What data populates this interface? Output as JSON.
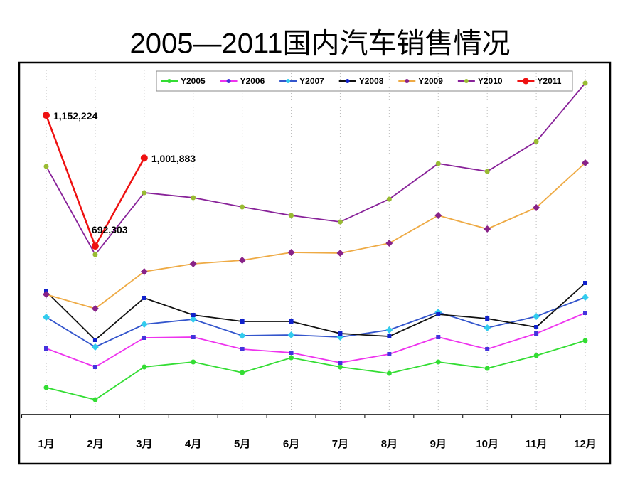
{
  "chart_data": {
    "type": "line",
    "title": "2005—2011国内汽车销售情况",
    "categories": [
      "1月",
      "2月",
      "3月",
      "4月",
      "5月",
      "6月",
      "7月",
      "8月",
      "9月",
      "10月",
      "11月",
      "12月"
    ],
    "ylim": [
      100000,
      1300000
    ],
    "legend": "top",
    "grid": true,
    "series": [
      {
        "name": "Y2005",
        "color": "#33dd33",
        "marker_color": "#33dd33",
        "values": [
          195000,
          152500,
          267500,
          285000,
          247500,
          300000,
          267500,
          245000,
          285000,
          262500,
          307500,
          360000
        ]
      },
      {
        "name": "Y2006",
        "color": "#ee33ee",
        "marker_color": "#4433dd",
        "values": [
          332500,
          267500,
          370000,
          372500,
          330000,
          317500,
          282500,
          312500,
          372500,
          330000,
          385000,
          457500
        ]
      },
      {
        "name": "Y2007",
        "color": "#3355cc",
        "marker_color": "#33ccee",
        "values": [
          442500,
          337500,
          417500,
          435000,
          377500,
          380000,
          372500,
          397500,
          460000,
          405000,
          445000,
          512500
        ]
      },
      {
        "name": "Y2008",
        "color": "#111111",
        "marker_color": "#1122cc",
        "values": [
          532500,
          362500,
          510000,
          450000,
          427500,
          427500,
          385000,
          375000,
          452500,
          437500,
          407500,
          562500
        ]
      },
      {
        "name": "Y2009",
        "color": "#eeaa44",
        "marker_color": "#882288",
        "values": [
          522500,
          472500,
          602500,
          630000,
          642500,
          670000,
          667500,
          702500,
          800000,
          752500,
          827500,
          985000
        ]
      },
      {
        "name": "Y2010",
        "color": "#882299",
        "marker_color": "#99bb33",
        "values": [
          972500,
          662500,
          880000,
          862500,
          830000,
          800000,
          777500,
          857500,
          982500,
          955000,
          1060000,
          1265000
        ]
      },
      {
        "name": "Y2011",
        "color": "#ee1111",
        "marker_color": "#ee1111",
        "values": [
          1152224,
          692303,
          1001883,
          null,
          null,
          null,
          null,
          null,
          null,
          null,
          null,
          null
        ],
        "value_labels": [
          "1,152,224",
          "692,303",
          "1,001,883",
          null,
          null,
          null,
          null,
          null,
          null,
          null,
          null,
          null
        ]
      }
    ]
  }
}
